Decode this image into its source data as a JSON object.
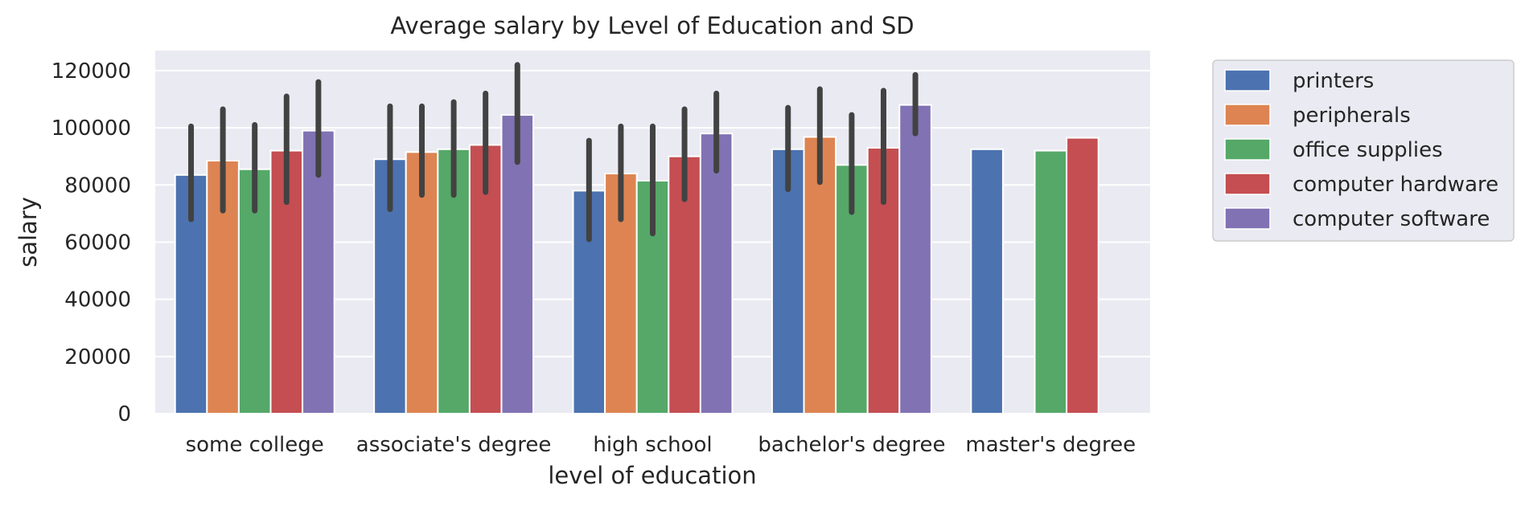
{
  "chart_data": {
    "type": "bar",
    "title": "Average salary by Level of Education and SD",
    "xlabel": "level of education",
    "ylabel": "salary",
    "ylim": [
      0,
      127000
    ],
    "yticks": [
      0,
      20000,
      40000,
      60000,
      80000,
      100000,
      120000
    ],
    "grid": true,
    "legend_position": "outside-right",
    "categories": [
      "some college",
      "associate's degree",
      "high school",
      "bachelor's degree",
      "master's degree"
    ],
    "series": [
      {
        "name": "printers",
        "color": "#4c72b0",
        "values": [
          83500,
          89000,
          78000,
          92500,
          92500
        ],
        "err_low": [
          68000,
          71500,
          61000,
          78500,
          null
        ],
        "err_high": [
          100500,
          107500,
          95500,
          107000,
          null
        ]
      },
      {
        "name": "peripherals",
        "color": "#dd8452",
        "values": [
          88500,
          91500,
          84000,
          96800,
          null
        ],
        "err_low": [
          71000,
          76500,
          68000,
          81000,
          null
        ],
        "err_high": [
          106500,
          107500,
          100500,
          113500,
          null
        ]
      },
      {
        "name": "office supplies",
        "color": "#55a868",
        "values": [
          85500,
          92500,
          81500,
          87000,
          92000
        ],
        "err_low": [
          71000,
          76500,
          63000,
          70500,
          null
        ],
        "err_high": [
          101000,
          109000,
          100500,
          104500,
          null
        ]
      },
      {
        "name": "computer hardware",
        "color": "#c44e52",
        "values": [
          92000,
          94000,
          90000,
          93000,
          96500
        ],
        "err_low": [
          74000,
          77500,
          75000,
          74000,
          null
        ],
        "err_high": [
          111000,
          112000,
          106500,
          113000,
          null
        ]
      },
      {
        "name": "computer software",
        "color": "#8172b3",
        "values": [
          99000,
          104500,
          98000,
          108000,
          null
        ],
        "err_low": [
          83500,
          88000,
          85000,
          98000,
          null
        ],
        "err_high": [
          116000,
          122000,
          112000,
          118500,
          null
        ]
      }
    ]
  }
}
